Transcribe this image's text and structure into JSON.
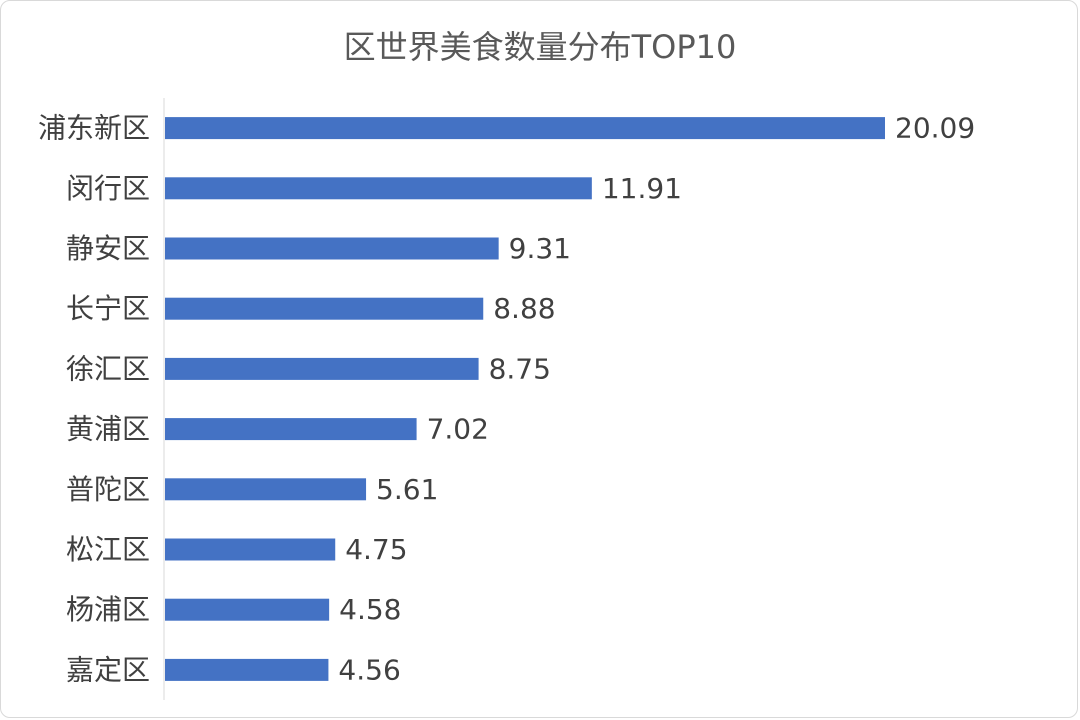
{
  "chart_data": {
    "type": "bar",
    "orientation": "horizontal",
    "title": "区世界美食数量分布TOP10",
    "categories": [
      "浦东新区",
      "闵行区",
      "静安区",
      "长宁区",
      "徐汇区",
      "黄浦区",
      "普陀区",
      "松江区",
      "杨浦区",
      "嘉定区"
    ],
    "values": [
      20.09,
      11.91,
      9.31,
      8.88,
      8.75,
      7.02,
      5.61,
      4.75,
      4.58,
      4.56
    ],
    "value_labels": [
      "20.09",
      "11.91",
      "9.31",
      "8.88",
      "8.75",
      "7.02",
      "5.61",
      "4.75",
      "4.58",
      "4.56"
    ],
    "xlim": [
      0,
      20.09
    ],
    "grid": false,
    "legend": "none",
    "bar_color": "#4472C4",
    "text_color": "#404040",
    "axis_color": "#d9d9d9"
  }
}
